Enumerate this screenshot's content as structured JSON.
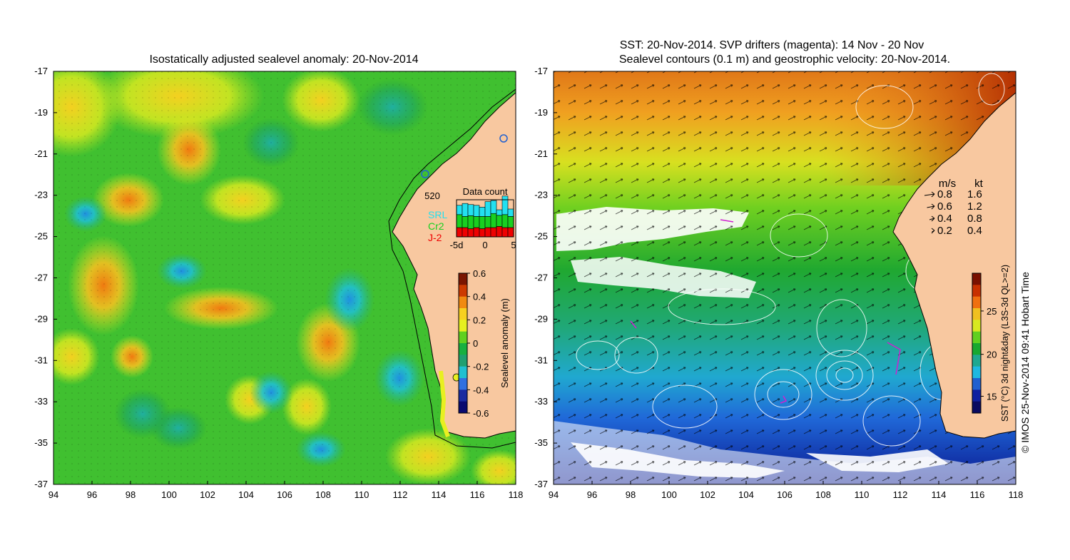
{
  "left_panel": {
    "title": "Isostatically adjusted sealevel anomaly: 20-Nov-2014",
    "x_ticks": [
      "94",
      "96",
      "98",
      "100",
      "102",
      "104",
      "106",
      "108",
      "110",
      "112",
      "114",
      "116",
      "118"
    ],
    "y_ticks": [
      "-17",
      "-19",
      "-21",
      "-23",
      "-25",
      "-27",
      "-29",
      "-31",
      "-33",
      "-35",
      "-37"
    ],
    "data_count": {
      "title": "Data count",
      "max_label": "520",
      "x_ticks": [
        "-5d",
        "0",
        "5"
      ],
      "satellites": [
        {
          "name": "SRL",
          "color": "#22e0f0"
        },
        {
          "name": "Cr2",
          "color": "#18d020"
        },
        {
          "name": "J-2",
          "color": "#ee0000"
        }
      ],
      "bars": {
        "j2": [
          0.25,
          0.25,
          0.22,
          0.25,
          0.22,
          0.25,
          0.25,
          0.28,
          0.25,
          0.25
        ],
        "cr2": [
          0.35,
          0.3,
          0.35,
          0.3,
          0.33,
          0.3,
          0.38,
          0.3,
          0.35,
          0.3
        ],
        "srl": [
          0.25,
          0.35,
          0.3,
          0.3,
          0.25,
          0.4,
          0.35,
          0.15,
          0.5,
          0.2
        ]
      }
    },
    "colorbar": {
      "label": "Sealevel anomaly (m)",
      "ticks": [
        "0.6",
        "0.4",
        "0.2",
        "0",
        "-0.2",
        "-0.4",
        "-0.6"
      ],
      "colors": [
        "#7a1500",
        "#cc3a00",
        "#f08a10",
        "#f6d020",
        "#e6f020",
        "#60d020",
        "#18b040",
        "#20a070",
        "#20c0d0",
        "#3070e0",
        "#1c2ca0",
        "#0a0a70"
      ]
    }
  },
  "right_panel": {
    "title_line1": "SST: 20-Nov-2014. SVP drifters (magenta): 14 Nov - 20 Nov",
    "title_line2": "Sealevel contours (0.1 m) and geostrophic velocity: 20-Nov-2014.",
    "x_ticks": [
      "94",
      "96",
      "98",
      "100",
      "102",
      "104",
      "106",
      "108",
      "110",
      "112",
      "114",
      "116",
      "118"
    ],
    "y_ticks": [
      "-17",
      "-19",
      "-21",
      "-23",
      "-25",
      "-27",
      "-29",
      "-31",
      "-33",
      "-35",
      "-37"
    ],
    "velocity_legend": {
      "header_ms": "m/s",
      "header_kt": "kt",
      "rows": [
        {
          "ms": "0.8",
          "kt": "1.6",
          "scale": 1.0
        },
        {
          "ms": "0.6",
          "kt": "1.2",
          "scale": 0.75
        },
        {
          "ms": "0.4",
          "kt": "0.8",
          "scale": 0.5
        },
        {
          "ms": "0.2",
          "kt": "0.4",
          "scale": 0.25
        }
      ]
    },
    "colorbar": {
      "label": "SST (°C) 3d night&day (L3S-3d QL>=2)",
      "ticks": [
        "25",
        "20",
        "15"
      ],
      "colors": [
        "#7a1000",
        "#c83000",
        "#f07010",
        "#f0c020",
        "#d8e820",
        "#60d020",
        "#18a830",
        "#20a890",
        "#20b8e0",
        "#2060d0",
        "#1020a0",
        "#0a0a60"
      ]
    }
  },
  "credit": "© IMOS 25-Nov-2014 09:41 Hobart Time",
  "colors": {
    "land": "#f8c8a0",
    "background": "#ffffff"
  }
}
